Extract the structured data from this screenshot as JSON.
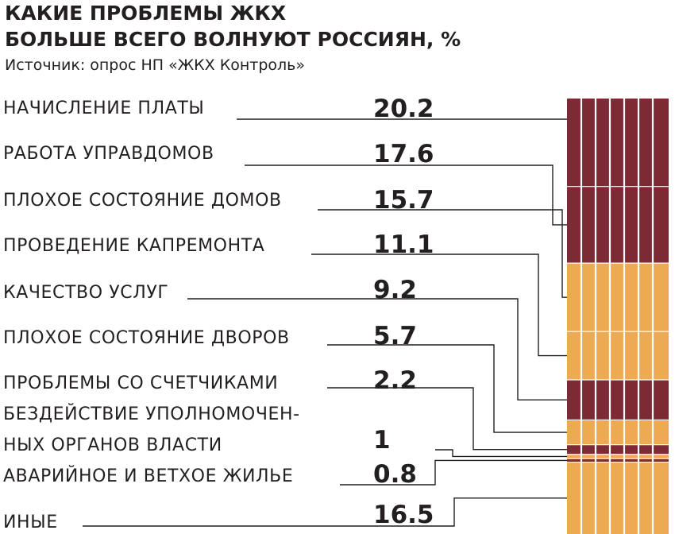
{
  "chart_data": {
    "type": "bar",
    "orientation": "stacked-column",
    "title_line1": "КАКИЕ ПРОБЛЕМЫ ЖКХ",
    "title_line2": "БОЛЬШЕ ВСЕГО ВОЛНУЮТ РОССИЯН, %",
    "source": "Источник: опрос НП «ЖКХ Контроль»",
    "categories": [
      [
        "НАЧИСЛЕНИЕ ПЛАТЫ"
      ],
      [
        "РАБОТА УПРАВДОМОВ"
      ],
      [
        "ПЛОХОЕ СОСТОЯНИЕ ДОМОВ"
      ],
      [
        "ПРОВЕДЕНИЕ КАПРЕМОНТА"
      ],
      [
        "КАЧЕСТВО УСЛУГ"
      ],
      [
        "ПЛОХОЕ СОСТОЯНИЕ ДВОРОВ"
      ],
      [
        "ПРОБЛЕМЫ СО СЧЕТЧИКАМИ"
      ],
      [
        "БЕЗДЕЙСТВИЕ УПОЛНОМОЧЕН-",
        "НЫХ ОРГАНОВ ВЛАСТИ"
      ],
      [
        "АВАРИЙНОЕ И ВЕТХОЕ ЖИЛЬЕ"
      ],
      [
        "ИНЫЕ"
      ]
    ],
    "values": [
      20.2,
      17.6,
      15.7,
      11.1,
      9.2,
      5.7,
      2.2,
      1,
      0.8,
      16.5
    ],
    "value_labels": [
      "20.2",
      "17.6",
      "15.7",
      "11.1",
      "9.2",
      "5.7",
      "2.2",
      "1",
      "0.8",
      "16.5"
    ],
    "colors": {
      "dark": "#7d2a34",
      "light": "#eeaa52",
      "text": "#231f20",
      "stripe": "#ffffff"
    },
    "segment_colors": [
      "dark",
      "dark",
      "light",
      "light",
      "dark",
      "light",
      "dark",
      "light",
      "dark",
      "light"
    ]
  }
}
